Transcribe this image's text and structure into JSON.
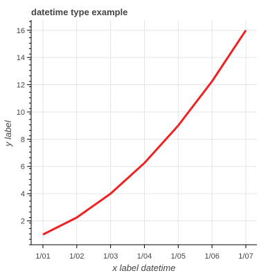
{
  "chart_data": {
    "type": "line",
    "title": "datetime type example",
    "xlabel": "x label datetime",
    "ylabel": "y label",
    "x": [
      "1/01",
      "1/02",
      "1/03",
      "1/04",
      "1/05",
      "1/06",
      "1/07"
    ],
    "series": [
      {
        "values": [
          1,
          2.25,
          4,
          6.25,
          9,
          12.25,
          16
        ],
        "color": "#ee2222"
      }
    ],
    "xlim": [
      "1/01",
      "1/07"
    ],
    "ylim": [
      0.25,
      16.75
    ],
    "yticks_major": [
      2,
      4,
      6,
      8,
      10,
      12,
      14,
      16
    ],
    "grid": true
  }
}
